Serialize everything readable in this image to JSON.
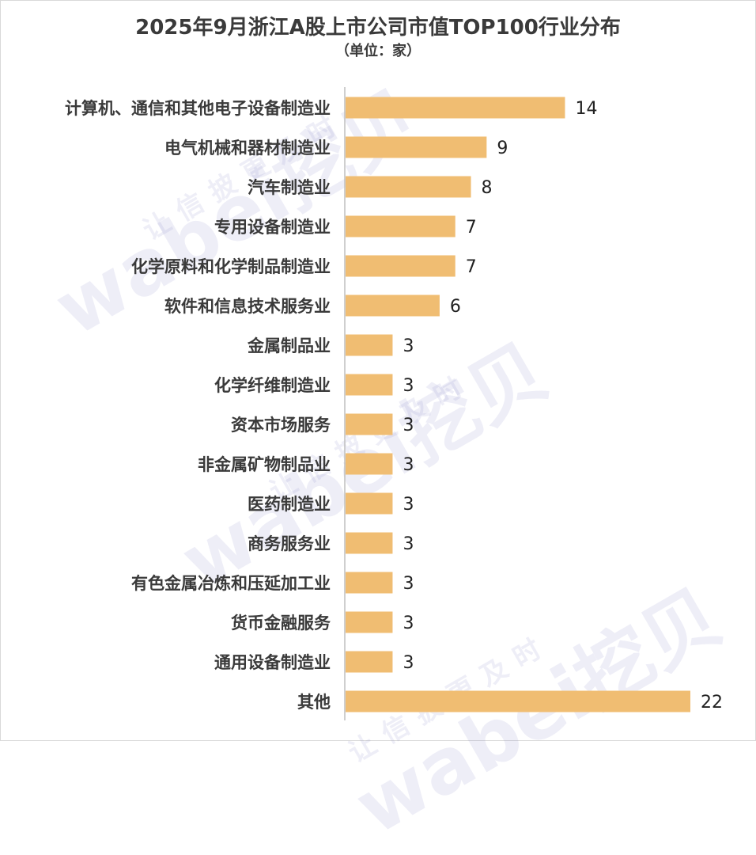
{
  "chart_data": {
    "type": "bar",
    "orientation": "horizontal",
    "title": "2025年9月浙江A股上市公司市值TOP100行业分布",
    "subtitle": "（单位：家）",
    "categories": [
      "计算机、通信和其他电子设备制造业",
      "电气机械和器材制造业",
      "汽车制造业",
      "专用设备制造业",
      "化学原料和化学制品制造业",
      "软件和信息技术服务业",
      "金属制品业",
      "化学纤维制造业",
      "资本市场服务",
      "非金属矿物制品业",
      "医药制造业",
      "商务服务业",
      "有色金属冶炼和压延加工业",
      "货币金融服务",
      "通用设备制造业",
      "其他"
    ],
    "values": [
      14,
      9,
      8,
      7,
      7,
      6,
      3,
      3,
      3,
      3,
      3,
      3,
      3,
      3,
      3,
      22
    ],
    "xlim": [
      0,
      22
    ],
    "bar_color": "#f0bd72",
    "axis_color": "#bfbfbf",
    "grid": false,
    "legend": "none",
    "data_labels": true
  },
  "watermark": {
    "brand": "wabei挖贝",
    "slogan": "让信披更及时"
  }
}
